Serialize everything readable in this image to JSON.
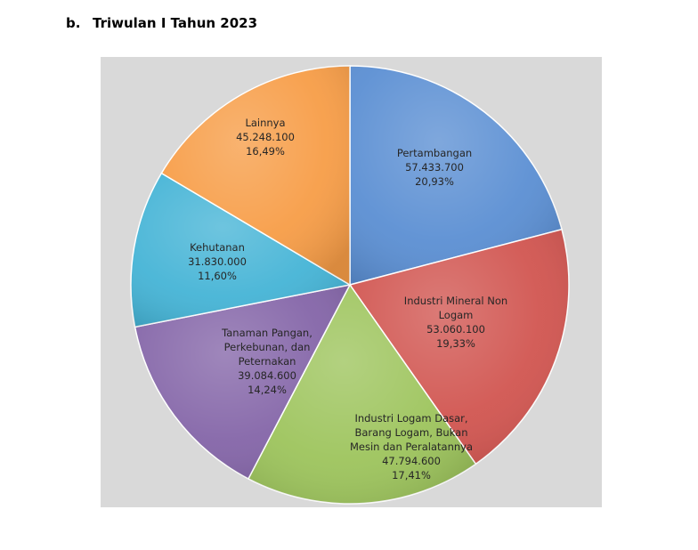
{
  "heading": {
    "number": "b.",
    "title": "Triwulan I Tahun 2023"
  },
  "chart_data": {
    "type": "pie",
    "title": "",
    "slices": [
      {
        "label_lines": [
          "Pertambangan"
        ],
        "value": 57433700,
        "value_text": "57.433.700",
        "percent": 20.93,
        "percent_text": "20,93%",
        "color": "#5b8fd3"
      },
      {
        "label_lines": [
          "Industri Mineral Non",
          "Logam"
        ],
        "value": 53060100,
        "value_text": "53.060.100",
        "percent": 19.33,
        "percent_text": "19,33%",
        "color": "#d15550"
      },
      {
        "label_lines": [
          "Industri Logam Dasar,",
          "Barang Logam, Bukan",
          "Mesin dan Peralatannya"
        ],
        "value": 47794600,
        "value_text": "47.794.600",
        "percent": 17.41,
        "percent_text": "17,41%",
        "color": "#9dc45c"
      },
      {
        "label_lines": [
          "Tanaman Pangan,",
          "Perkebunan, dan",
          "Peternakan"
        ],
        "value": 39084600,
        "value_text": "39.084.600",
        "percent": 14.24,
        "percent_text": "14,24%",
        "color": "#8465a8"
      },
      {
        "label_lines": [
          "Kehutanan"
        ],
        "value": 31830000,
        "value_text": "31.830.000",
        "percent": 11.6,
        "percent_text": "11,60%",
        "color": "#45b4d6"
      },
      {
        "label_lines": [
          "Lainnya"
        ],
        "value": 45248100,
        "value_text": "45.248.100",
        "percent": 16.49,
        "percent_text": "16,49%",
        "color": "#f79d47"
      }
    ]
  }
}
